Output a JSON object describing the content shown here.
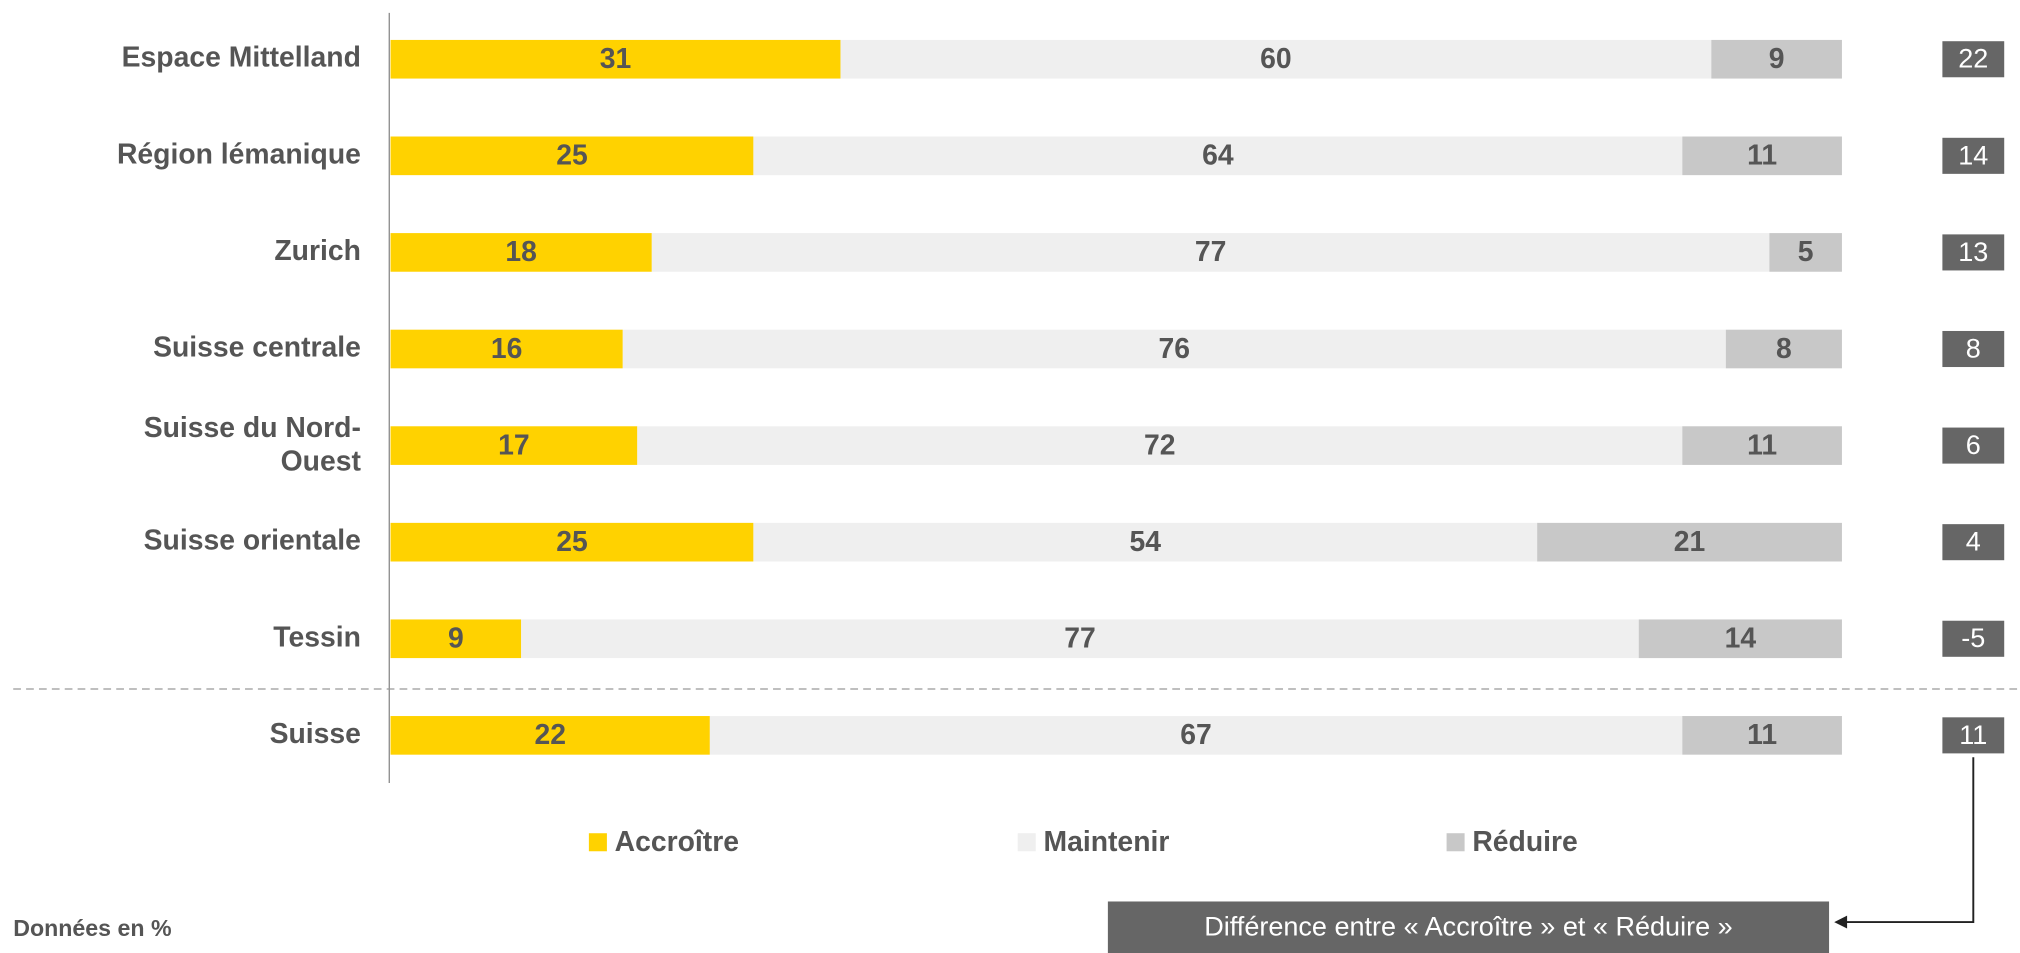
{
  "chart_data": {
    "type": "stacked-barh",
    "categories": [
      "Espace Mittelland",
      "Région lémanique",
      "Zurich",
      "Suisse centrale",
      "Suisse du Nord-Ouest",
      "Suisse orientale",
      "Tessin",
      "Suisse"
    ],
    "series": [
      {
        "name": "Accroître",
        "color": "#ffd200",
        "values": [
          31,
          25,
          18,
          16,
          17,
          25,
          9,
          22
        ]
      },
      {
        "name": "Maintenir",
        "color": "#efefef",
        "values": [
          60,
          64,
          77,
          76,
          72,
          54,
          77,
          67
        ]
      },
      {
        "name": "Réduire",
        "color": "#c8c8c8",
        "values": [
          9,
          11,
          5,
          8,
          11,
          21,
          14,
          11
        ]
      }
    ],
    "xlim": [
      0,
      100
    ],
    "difference": {
      "label": "Différence entre « Accroître » et « Réduire »",
      "color": "#666666",
      "values": [
        22,
        14,
        13,
        8,
        6,
        4,
        -5,
        11
      ]
    },
    "note": "Données en %"
  }
}
